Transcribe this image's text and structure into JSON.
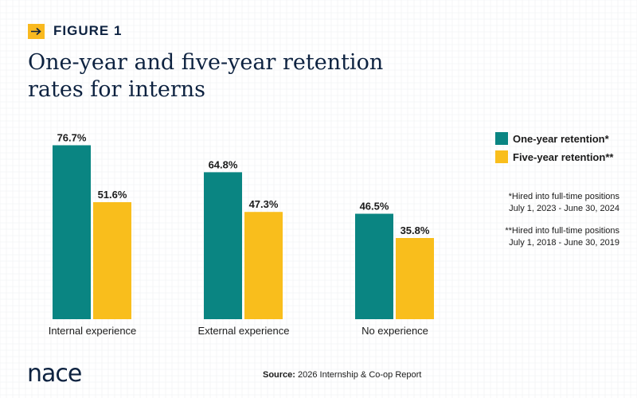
{
  "figure_label": "FIGURE 1",
  "title_line1": "One-year and five-year retention",
  "title_line2": "rates for interns",
  "legend": [
    {
      "label": "One-year retention*",
      "color": "#0a8582"
    },
    {
      "label": "Five-year retention**",
      "color": "#f9be1c"
    }
  ],
  "notes": {
    "one_year_line1": "*Hired into full-time positions",
    "one_year_line2": "July 1, 2023 - June 30, 2024",
    "five_year_line1": "**Hired into full-time positions",
    "five_year_line2": "July 1, 2018 - June 30, 2019"
  },
  "source_label": "Source:",
  "source_text": "2026 Internship & Co-op Report",
  "logo_text": "nace",
  "chart_data": {
    "type": "bar",
    "categories": [
      "Internal experience",
      "External experience",
      "No experience"
    ],
    "series": [
      {
        "name": "One-year retention*",
        "values": [
          76.7,
          64.8,
          46.5
        ],
        "labels": [
          "76.7%",
          "64.8%",
          "46.5%"
        ],
        "color": "#0a8582"
      },
      {
        "name": "Five-year retention**",
        "values": [
          51.6,
          47.3,
          35.8
        ],
        "labels": [
          "51.6%",
          "47.3%",
          "35.8%"
        ],
        "color": "#f9be1c"
      }
    ],
    "ylim": [
      0,
      100
    ],
    "grid": false,
    "legend_position": "right"
  }
}
